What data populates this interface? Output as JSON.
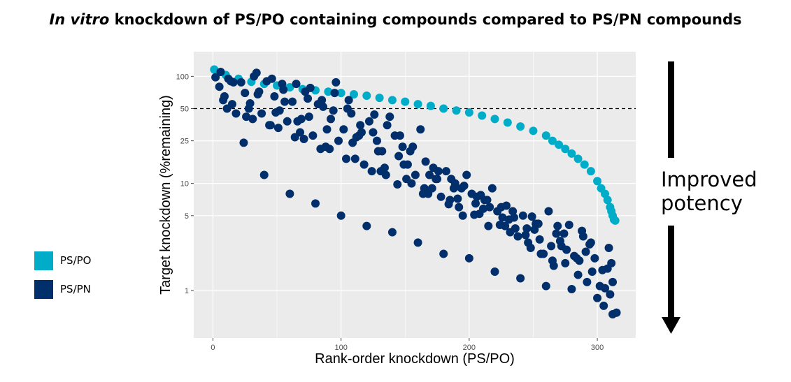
{
  "title": {
    "italic": "In vitro",
    "rest": " knockdown of PS/PO containing compounds compared to PS/PN compounds"
  },
  "annotation": {
    "line1": "Improved",
    "line2": "potency"
  },
  "colors": {
    "ps_po": "#00acc8",
    "ps_pn": "#012f6b",
    "panel": "#ebebeb",
    "grid": "#ffffff"
  },
  "chart_data": {
    "type": "scatter",
    "xlabel": "Rank-order knockdown (PS/PO)",
    "ylabel": "Target knockdown (%remaining)",
    "xlim": [
      -15,
      330
    ],
    "ylim": [
      0.36,
      170
    ],
    "ylog": true,
    "xticks": [
      0,
      100,
      200,
      300
    ],
    "xtick_labels": [
      "0",
      "100",
      "200",
      "300"
    ],
    "yticks": [
      1,
      5,
      10,
      25,
      50,
      100
    ],
    "ytick_labels": [
      "1",
      "5",
      "10",
      "25",
      "50",
      "100"
    ],
    "reference_line": {
      "y": 50,
      "style": "dashed"
    },
    "legend": [
      {
        "key": "ps_po",
        "label": "PS/PO"
      },
      {
        "key": "ps_pn",
        "label": "PS/PN"
      }
    ],
    "series": [
      {
        "name": "PS/PO",
        "color": "#00acc8",
        "x": [
          1,
          10,
          20,
          30,
          40,
          50,
          60,
          70,
          80,
          90,
          100,
          110,
          120,
          130,
          140,
          150,
          160,
          170,
          180,
          190,
          200,
          210,
          220,
          230,
          240,
          250,
          260,
          265,
          270,
          275,
          280,
          285,
          290,
          295,
          300,
          303,
          306,
          308,
          310,
          311,
          312,
          313,
          314
        ],
        "y": [
          116,
          103,
          95,
          89,
          85,
          82,
          79,
          76,
          74,
          72,
          70,
          68,
          66,
          63,
          60,
          58,
          55,
          53,
          50,
          48,
          46,
          43,
          40,
          37,
          34,
          31,
          28,
          25,
          23,
          21,
          19,
          17,
          15,
          13,
          10.5,
          9,
          8,
          7,
          6,
          5.5,
          5,
          4.6,
          4.5
        ]
      },
      {
        "name": "PS/PN",
        "color": "#012f6b",
        "x": [
          2,
          5,
          8,
          12,
          15,
          18,
          22,
          25,
          28,
          32,
          35,
          38,
          42,
          45,
          48,
          52,
          55,
          58,
          62,
          65,
          68,
          72,
          75,
          78,
          82,
          85,
          88,
          92,
          95,
          98,
          102,
          105,
          108,
          112,
          115,
          118,
          122,
          125,
          128,
          132,
          135,
          138,
          142,
          145,
          148,
          152,
          155,
          158,
          162,
          165,
          168,
          172,
          175,
          178,
          182,
          185,
          188,
          192,
          195,
          198,
          202,
          205,
          208,
          212,
          215,
          218,
          222,
          225,
          228,
          232,
          235,
          238,
          242,
          245,
          248,
          252,
          255,
          258,
          262,
          265,
          268,
          272,
          275,
          278,
          282,
          285,
          288,
          292,
          295,
          298,
          302,
          305,
          308,
          312,
          315,
          6,
          16,
          26,
          36,
          46,
          56,
          66,
          76,
          86,
          96,
          106,
          116,
          126,
          136,
          146,
          156,
          166,
          176,
          186,
          196,
          206,
          216,
          226,
          236,
          246,
          256,
          266,
          276,
          286,
          296,
          306,
          14,
          34,
          54,
          74,
          94,
          114,
          134,
          154,
          174,
          194,
          214,
          234,
          254,
          274,
          294,
          9,
          29,
          49,
          69,
          89,
          109,
          129,
          149,
          169,
          189,
          209,
          229,
          249,
          269,
          289,
          309,
          24,
          44,
          64,
          84,
          104,
          124,
          144,
          164,
          184,
          204,
          224,
          244,
          264,
          284,
          304,
          312,
          40,
          60,
          80,
          100,
          120,
          140,
          160,
          180,
          200,
          220,
          240,
          260,
          280,
          300,
          310,
          11,
          31,
          51,
          71,
          91,
          111,
          131,
          151,
          171,
          191,
          211,
          231,
          251,
          271,
          291,
          311
        ],
        "y": [
          98,
          80,
          60,
          95,
          55,
          45,
          88,
          70,
          50,
          100,
          68,
          45,
          90,
          35,
          65,
          48,
          75,
          38,
          58,
          85,
          30,
          72,
          42,
          28,
          55,
          60,
          22,
          40,
          70,
          25,
          32,
          50,
          45,
          27,
          35,
          15,
          38,
          30,
          25,
          20,
          12,
          42,
          28,
          18,
          22,
          15,
          10,
          12,
          32,
          9,
          8,
          14,
          11,
          7.5,
          13,
          7,
          9,
          6,
          5,
          12,
          8,
          6.5,
          5.2,
          7,
          4,
          9,
          5.5,
          6,
          4,
          3.5,
          4.8,
          3.2,
          5,
          3.8,
          2.5,
          4.2,
          3,
          2.2,
          5.5,
          1.9,
          3.4,
          2.6,
          1.8,
          4.1,
          2.1,
          1.4,
          3.6,
          1.2,
          2.8,
          2.0,
          1.1,
          0.72,
          1.6,
          0.6,
          0.62,
          110,
          88,
          42,
          72,
          95,
          58,
          38,
          78,
          52,
          88,
          60,
          30,
          44,
          35,
          28,
          22,
          16,
          13,
          11,
          9.5,
          7.5,
          6,
          4.8,
          3.8,
          2.8,
          2.2,
          1.7,
          2.4,
          1.9,
          1.5,
          1.05,
          90,
          108,
          85,
          62,
          48,
          28,
          14,
          20,
          11,
          9,
          7,
          5.5,
          4.2,
          3.4,
          2.7,
          65,
          56,
          46,
          40,
          32,
          24,
          20,
          15,
          12,
          10,
          7.8,
          6.2,
          4.9,
          4.0,
          3.2,
          2.5,
          24,
          35,
          27,
          21,
          17,
          13,
          9.8,
          8.0,
          6.4,
          5.1,
          4.1,
          3.3,
          2.6,
          2.0,
          1.55,
          1.2,
          12,
          8,
          6.5,
          5,
          4,
          3.5,
          2.8,
          2.2,
          2,
          1.5,
          1.3,
          1.1,
          1.03,
          0.85,
          0.92,
          50,
          40,
          33,
          26,
          21,
          17,
          13,
          11,
          9,
          7.2,
          5.8,
          4.6,
          3.7,
          2.9,
          2.3,
          1.8
        ]
      }
    ]
  }
}
